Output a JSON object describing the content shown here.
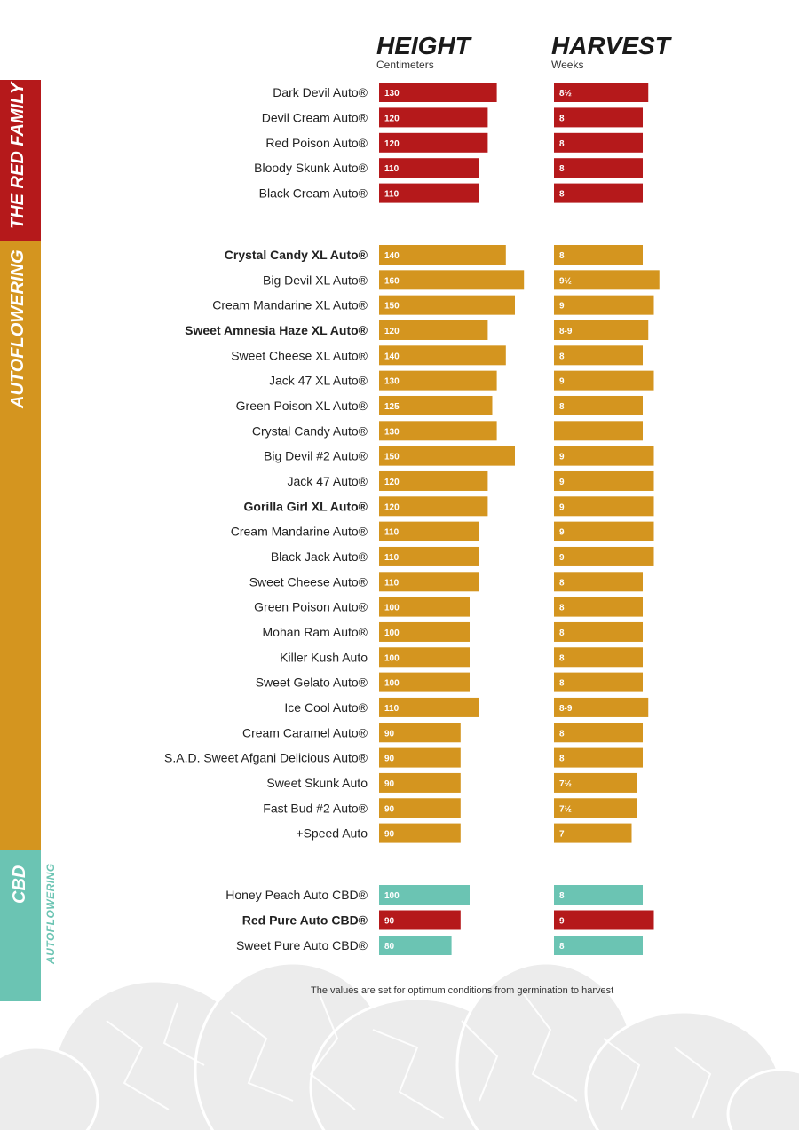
{
  "colors": {
    "red": "#b5191b",
    "orange": "#d4951f",
    "teal": "#6bc4b3",
    "seed_bg": "#ececec"
  },
  "headers": {
    "height_title": "HEIGHT",
    "height_unit": "Centimeters",
    "harvest_title": "HARVEST",
    "harvest_unit": "Weeks"
  },
  "groups": {
    "red_family": "THE RED FAMILY",
    "autoflowering": "AUTOFLOWERING",
    "cbd": "CBD",
    "cbd_sub": "AUTOFLOWERING"
  },
  "footnote": "The values are set for optimum conditions from germination to harvest",
  "chart_data": {
    "type": "bar",
    "title": "",
    "series": [
      {
        "name": "HEIGHT",
        "unit": "Centimeters"
      },
      {
        "name": "HARVEST",
        "unit": "Weeks"
      }
    ],
    "rows": [
      {
        "name": "Dark Devil Auto®",
        "bold": false,
        "group": "red",
        "height": 130,
        "harvest": 8.5,
        "harvest_label": "8½"
      },
      {
        "name": "Devil Cream Auto®",
        "bold": false,
        "group": "red",
        "height": 120,
        "harvest": 8,
        "harvest_label": "8"
      },
      {
        "name": "Red Poison Auto®",
        "bold": false,
        "group": "red",
        "height": 120,
        "harvest": 8,
        "harvest_label": "8"
      },
      {
        "name": "Bloody Skunk Auto®",
        "bold": false,
        "group": "red",
        "height": 110,
        "harvest": 8,
        "harvest_label": "8"
      },
      {
        "name": "Black Cream Auto®",
        "bold": false,
        "group": "red",
        "height": 110,
        "harvest": 8,
        "harvest_label": "8"
      },
      {
        "name": "Crystal Candy XL Auto®",
        "bold": true,
        "group": "orange",
        "height": 140,
        "harvest": 8,
        "harvest_label": "8"
      },
      {
        "name": "Big Devil XL Auto®",
        "bold": false,
        "group": "orange",
        "height": 160,
        "harvest": 9.5,
        "harvest_label": "9½"
      },
      {
        "name": "Cream Mandarine XL Auto®",
        "bold": false,
        "group": "orange",
        "height": 150,
        "harvest": 9,
        "harvest_label": "9"
      },
      {
        "name": "Sweet Amnesia Haze XL Auto®",
        "bold": true,
        "group": "orange",
        "height": 120,
        "harvest": 8.5,
        "harvest_label": "8-9"
      },
      {
        "name": "Sweet Cheese XL Auto®",
        "bold": false,
        "group": "orange",
        "height": 140,
        "harvest": 8,
        "harvest_label": "8"
      },
      {
        "name": "Jack 47 XL Auto®",
        "bold": false,
        "group": "orange",
        "height": 130,
        "harvest": 9,
        "harvest_label": "9"
      },
      {
        "name": "Green Poison XL Auto®",
        "bold": false,
        "group": "orange",
        "height": 125,
        "harvest": 8,
        "harvest_label": "8"
      },
      {
        "name": "Crystal Candy Auto®",
        "bold": false,
        "group": "orange",
        "height": 130,
        "harvest": 8,
        "harvest_label": ""
      },
      {
        "name": "Big Devil #2 Auto®",
        "bold": false,
        "group": "orange",
        "height": 150,
        "harvest": 9,
        "harvest_label": "9"
      },
      {
        "name": "Jack 47 Auto®",
        "bold": false,
        "group": "orange",
        "height": 120,
        "harvest": 9,
        "harvest_label": "9"
      },
      {
        "name": "Gorilla Girl XL Auto®",
        "bold": true,
        "group": "orange",
        "height": 120,
        "harvest": 9,
        "harvest_label": "9"
      },
      {
        "name": "Cream Mandarine Auto®",
        "bold": false,
        "group": "orange",
        "height": 110,
        "harvest": 9,
        "harvest_label": "9"
      },
      {
        "name": "Black Jack Auto®",
        "bold": false,
        "group": "orange",
        "height": 110,
        "harvest": 9,
        "harvest_label": "9"
      },
      {
        "name": "Sweet Cheese Auto®",
        "bold": false,
        "group": "orange",
        "height": 110,
        "harvest": 8,
        "harvest_label": "8"
      },
      {
        "name": "Green Poison Auto®",
        "bold": false,
        "group": "orange",
        "height": 100,
        "harvest": 8,
        "harvest_label": "8"
      },
      {
        "name": "Mohan Ram Auto®",
        "bold": false,
        "group": "orange",
        "height": 100,
        "harvest": 8,
        "harvest_label": "8"
      },
      {
        "name": "Killer Kush Auto",
        "bold": false,
        "group": "orange",
        "height": 100,
        "harvest": 8,
        "harvest_label": "8"
      },
      {
        "name": "Sweet Gelato Auto®",
        "bold": false,
        "group": "orange",
        "height": 100,
        "harvest": 8,
        "harvest_label": "8"
      },
      {
        "name": "Ice Cool Auto®",
        "bold": false,
        "group": "orange",
        "height": 110,
        "harvest": 8.5,
        "harvest_label": "8-9"
      },
      {
        "name": "Cream Caramel Auto®",
        "bold": false,
        "group": "orange",
        "height": 90,
        "harvest": 8,
        "harvest_label": "8"
      },
      {
        "name": "S.A.D. Sweet Afgani Delicious Auto®",
        "bold": false,
        "group": "orange",
        "height": 90,
        "harvest": 8,
        "harvest_label": "8"
      },
      {
        "name": "Sweet Skunk Auto",
        "bold": false,
        "group": "orange",
        "height": 90,
        "harvest": 7.5,
        "harvest_label": "7½"
      },
      {
        "name": "Fast Bud #2 Auto®",
        "bold": false,
        "group": "orange",
        "height": 90,
        "harvest": 7.5,
        "harvest_label": "7½"
      },
      {
        "name": "+Speed Auto",
        "bold": false,
        "group": "orange",
        "height": 90,
        "harvest": 7,
        "harvest_label": "7"
      },
      {
        "name": "Honey Peach Auto CBD®",
        "bold": false,
        "group": "teal",
        "height": 100,
        "harvest": 8,
        "harvest_label": "8"
      },
      {
        "name": "Red Pure Auto CBD®",
        "bold": true,
        "group": "red",
        "height": 90,
        "harvest": 9,
        "harvest_label": "9"
      },
      {
        "name": "Sweet Pure Auto CBD®",
        "bold": false,
        "group": "teal",
        "height": 80,
        "harvest": 8,
        "harvest_label": "8"
      }
    ]
  }
}
